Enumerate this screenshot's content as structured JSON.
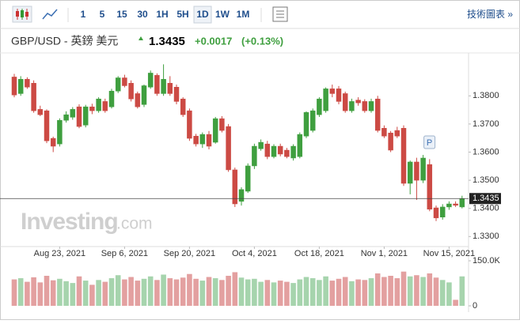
{
  "toolbar": {
    "intervals": [
      "1",
      "5",
      "15",
      "30",
      "1H",
      "5H",
      "1D",
      "1W",
      "1M"
    ],
    "selected": 6,
    "link": "技術圖表 »"
  },
  "header": {
    "title": "GBP/USD - 英鎊 美元",
    "price": "1.3435",
    "change": "+0.0017",
    "change_pct": "(+0.13%)"
  },
  "chart_data": {
    "type": "candlestick",
    "watermark": [
      "Investing",
      ".com"
    ],
    "annotation": "P",
    "annotation_index": 63,
    "categories": [
      null,
      null,
      null,
      null,
      null,
      null,
      null,
      "Aug 23, 2021",
      null,
      null,
      null,
      null,
      null,
      null,
      null,
      null,
      null,
      "Sep 6, 2021",
      null,
      null,
      null,
      null,
      null,
      null,
      null,
      null,
      null,
      "Sep 20, 2021",
      null,
      null,
      null,
      null,
      null,
      null,
      null,
      null,
      null,
      "Oct 4, 2021",
      null,
      null,
      null,
      null,
      null,
      null,
      null,
      null,
      null,
      "Oct 18, 2021",
      null,
      null,
      null,
      null,
      null,
      null,
      null,
      null,
      null,
      "Nov 1, 2021",
      null,
      null,
      null,
      null,
      null,
      null,
      null,
      null,
      null,
      "Nov 15, 2021",
      null,
      null
    ],
    "open": [
      1.3867,
      1.3808,
      1.3859,
      1.3845,
      1.3752,
      1.3747,
      1.3649,
      1.3629,
      1.3713,
      1.3724,
      1.3761,
      1.3696,
      1.3761,
      1.3747,
      1.378,
      1.3761,
      1.3817,
      1.3864,
      1.3845,
      1.3808,
      1.3769,
      1.3831,
      1.3873,
      1.3808,
      1.3845,
      1.3831,
      1.3789,
      1.3747,
      1.3657,
      1.3629,
      1.3663,
      1.3635,
      1.3719,
      1.3691,
      1.3537,
      1.3425,
      1.3461,
      1.3551,
      1.3612,
      1.3629,
      1.3584,
      1.3621,
      1.3607,
      1.3579,
      1.3584,
      1.3657,
      1.3677,
      1.3733,
      1.3747,
      1.3825,
      1.3825,
      1.3808,
      1.3747,
      1.3785,
      1.378,
      1.3747,
      1.3789,
      1.3685,
      1.3668,
      1.3677,
      1.3685,
      1.3489,
      1.3565,
      1.35,
      1.3556,
      1.3402,
      1.3369,
      1.3405,
      1.3416,
      1.3405
    ],
    "high": [
      1.3878,
      1.387,
      1.3866,
      1.3855,
      1.3765,
      1.3752,
      1.3655,
      1.372,
      1.3745,
      1.376,
      1.377,
      1.3768,
      1.3772,
      1.3795,
      1.379,
      1.3825,
      1.387,
      1.3875,
      1.3855,
      1.3815,
      1.384,
      1.389,
      1.388,
      1.3912,
      1.387,
      1.384,
      1.3795,
      1.3755,
      1.3665,
      1.367,
      1.3675,
      1.3725,
      1.3728,
      1.37,
      1.3545,
      1.3475,
      1.356,
      1.363,
      1.3645,
      1.364,
      1.3628,
      1.363,
      1.3615,
      1.3628,
      1.367,
      1.3745,
      1.3755,
      1.3795,
      1.383,
      1.384,
      1.3835,
      1.3815,
      1.379,
      1.3795,
      1.3788,
      1.379,
      1.38,
      1.3695,
      1.3675,
      1.369,
      1.3695,
      1.357,
      1.358,
      1.359,
      1.3575,
      1.341,
      1.3415,
      1.3425,
      1.3425,
      1.3445
    ],
    "low": [
      1.3795,
      1.38,
      1.3825,
      1.374,
      1.3728,
      1.3632,
      1.36,
      1.362,
      1.3705,
      1.3715,
      1.3685,
      1.3688,
      1.3735,
      1.374,
      1.374,
      1.3755,
      1.381,
      1.383,
      1.378,
      1.3755,
      1.376,
      1.3825,
      1.38,
      1.38,
      1.38,
      1.377,
      1.3725,
      1.364,
      1.362,
      1.3615,
      1.361,
      1.363,
      1.367,
      1.353,
      1.3405,
      1.341,
      1.3455,
      1.354,
      1.3605,
      1.3575,
      1.3578,
      1.3585,
      1.3578,
      1.357,
      1.3578,
      1.365,
      1.367,
      1.3725,
      1.374,
      1.3795,
      1.377,
      1.374,
      1.374,
      1.3765,
      1.374,
      1.374,
      1.367,
      1.365,
      1.36,
      1.365,
      1.348,
      1.345,
      1.343,
      1.349,
      1.339,
      1.3355,
      1.336,
      1.3395,
      1.3405,
      1.34
    ],
    "close": [
      1.3803,
      1.3859,
      1.3831,
      1.3747,
      1.3733,
      1.364,
      1.3621,
      1.3713,
      1.3733,
      1.3752,
      1.3691,
      1.3761,
      1.3747,
      1.3789,
      1.3747,
      1.3817,
      1.3864,
      1.3836,
      1.3789,
      1.3761,
      1.3836,
      1.3881,
      1.3808,
      1.3859,
      1.3808,
      1.378,
      1.3733,
      1.3649,
      1.3629,
      1.3663,
      1.3621,
      1.3719,
      1.3677,
      1.3537,
      1.3416,
      1.3467,
      1.3551,
      1.3621,
      1.3635,
      1.3584,
      1.3621,
      1.3593,
      1.3584,
      1.3621,
      1.3663,
      1.3741,
      1.3747,
      1.3789,
      1.3825,
      1.3808,
      1.378,
      1.3747,
      1.378,
      1.3775,
      1.3747,
      1.378,
      1.3677,
      1.3657,
      1.3607,
      1.3657,
      1.3489,
      1.3565,
      1.35,
      1.3579,
      1.3397,
      1.3366,
      1.3405,
      1.3416,
      1.3411,
      1.3435
    ],
    "volume": [
      88000,
      92000,
      80000,
      95000,
      78000,
      100000,
      85000,
      90000,
      82000,
      76000,
      98000,
      84000,
      70000,
      86000,
      80000,
      92000,
      102000,
      88000,
      96000,
      84000,
      90000,
      98000,
      86000,
      104000,
      92000,
      88000,
      94000,
      106000,
      90000,
      84000,
      96000,
      92000,
      86000,
      100000,
      112000,
      94000,
      88000,
      90000,
      80000,
      86000,
      78000,
      84000,
      80000,
      76000,
      88000,
      96000,
      92000,
      86000,
      98000,
      84000,
      90000,
      96000,
      82000,
      88000,
      86000,
      92000,
      108000,
      96000,
      100000,
      92000,
      114000,
      98000,
      102000,
      96000,
      108000,
      94000,
      86000,
      78000,
      20000,
      98000
    ],
    "up_color": "#3f9f3f",
    "down_color": "#cc4a44",
    "up_volume_color": "#a6d4ad",
    "down_volume_color": "#e3a0a0",
    "ylim": [
      1.327,
      1.393
    ],
    "yticks": [
      {
        "value": 1.33,
        "label": "1.3300"
      },
      {
        "value": 1.34,
        "label": "1.3400"
      },
      {
        "value": 1.35,
        "label": "1.3500"
      },
      {
        "value": 1.36,
        "label": "1.3600"
      },
      {
        "value": 1.37,
        "label": "1.3700"
      },
      {
        "value": 1.38,
        "label": "1.3800"
      }
    ],
    "last_price": {
      "value": 1.3435,
      "label": "1.3435"
    },
    "volume_lim": [
      0,
      150000
    ],
    "volume_ticks": [
      {
        "value": 150000,
        "label": "150.0K"
      },
      0
    ]
  }
}
